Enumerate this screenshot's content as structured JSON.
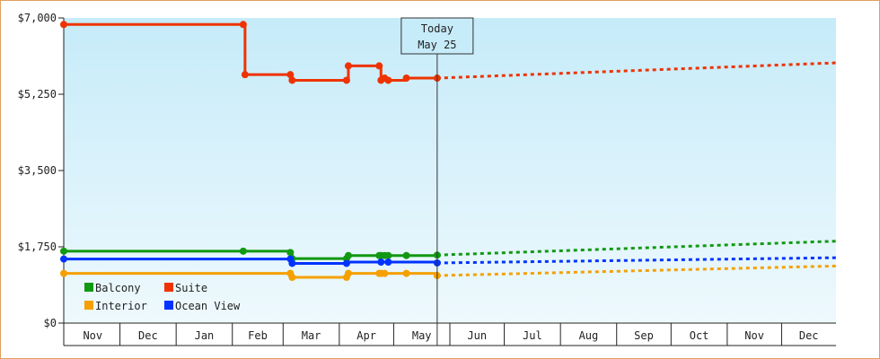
{
  "chart_data": {
    "type": "line",
    "title": "",
    "xlabel": "",
    "ylabel": "",
    "ylim": [
      0,
      7000
    ],
    "y_ticks": [
      "$0",
      "$1,750",
      "$3,500",
      "$5,250",
      "$7,000"
    ],
    "y_tick_values": [
      0,
      1750,
      3500,
      5250,
      7000
    ],
    "x_month_labels": [
      "Nov",
      "Dec",
      "Jan",
      "Feb",
      "Mar",
      "Apr",
      "May",
      "Jun",
      "Jul",
      "Aug",
      "Sep",
      "Oct",
      "Nov",
      "Dec"
    ],
    "x_range": [
      "2022-10-31",
      "2023-12-31"
    ],
    "today": {
      "label": "Today",
      "date_label": "May 25",
      "date": "2023-05-25"
    },
    "legend": {
      "placement": "bottom-left",
      "rows": [
        [
          "Balcony",
          "Suite"
        ],
        [
          "Interior",
          "Ocean View"
        ]
      ]
    },
    "grid": false,
    "series": [
      {
        "name": "Suite",
        "color": "#ee3300",
        "history": [
          [
            "2022-10-31",
            6850
          ],
          [
            "2023-02-07",
            6850
          ],
          [
            "2023-02-08",
            5700
          ],
          [
            "2023-03-05",
            5700
          ],
          [
            "2023-03-06",
            5570
          ],
          [
            "2023-04-05",
            5570
          ],
          [
            "2023-04-06",
            5900
          ],
          [
            "2023-04-23",
            5900
          ],
          [
            "2023-04-24",
            5570
          ],
          [
            "2023-04-26",
            5620
          ],
          [
            "2023-04-28",
            5570
          ],
          [
            "2023-05-08",
            5620
          ],
          [
            "2023-05-25",
            5620
          ]
        ],
        "history_markers": [
          "2022-10-31",
          "2023-02-07",
          "2023-02-08",
          "2023-03-05",
          "2023-03-06",
          "2023-04-05",
          "2023-04-06",
          "2023-04-23",
          "2023-04-24",
          "2023-04-26",
          "2023-04-28",
          "2023-05-08",
          "2023-05-25"
        ],
        "forecast": [
          [
            "2023-05-25",
            5620
          ],
          [
            "2023-12-31",
            5970
          ]
        ]
      },
      {
        "name": "Balcony",
        "color": "#119911",
        "history": [
          [
            "2022-10-31",
            1650
          ],
          [
            "2023-02-07",
            1650
          ],
          [
            "2023-03-05",
            1620
          ],
          [
            "2023-03-06",
            1480
          ],
          [
            "2023-04-05",
            1480
          ],
          [
            "2023-04-06",
            1550
          ],
          [
            "2023-05-25",
            1560
          ]
        ],
        "history_markers": [
          "2022-10-31",
          "2023-02-07",
          "2023-03-05",
          "2023-03-06",
          "2023-04-05",
          "2023-04-06",
          "2023-04-23",
          "2023-04-24",
          "2023-04-26",
          "2023-04-28",
          "2023-05-08",
          "2023-05-25"
        ],
        "forecast": [
          [
            "2023-05-25",
            1560
          ],
          [
            "2023-12-31",
            1880
          ]
        ]
      },
      {
        "name": "Ocean View",
        "color": "#0033ff",
        "history": [
          [
            "2022-10-31",
            1470
          ],
          [
            "2023-03-05",
            1470
          ],
          [
            "2023-03-06",
            1370
          ],
          [
            "2023-04-05",
            1370
          ],
          [
            "2023-04-06",
            1400
          ],
          [
            "2023-05-25",
            1380
          ]
        ],
        "history_markers": [
          "2022-10-31",
          "2023-03-05",
          "2023-03-06",
          "2023-04-05",
          "2023-04-24",
          "2023-04-28",
          "2023-05-25"
        ],
        "forecast": [
          [
            "2023-05-25",
            1380
          ],
          [
            "2023-12-31",
            1500
          ]
        ]
      },
      {
        "name": "Interior",
        "color": "#f5a000",
        "history": [
          [
            "2022-10-31",
            1140
          ],
          [
            "2023-03-05",
            1140
          ],
          [
            "2023-03-06",
            1050
          ],
          [
            "2023-04-05",
            1050
          ],
          [
            "2023-04-06",
            1140
          ],
          [
            "2023-05-25",
            1090
          ]
        ],
        "history_markers": [
          "2022-10-31",
          "2023-03-05",
          "2023-03-06",
          "2023-04-05",
          "2023-04-06",
          "2023-04-23",
          "2023-04-24",
          "2023-04-26",
          "2023-05-08",
          "2023-05-25"
        ],
        "forecast": [
          [
            "2023-05-25",
            1090
          ],
          [
            "2023-12-31",
            1310
          ]
        ]
      }
    ]
  }
}
